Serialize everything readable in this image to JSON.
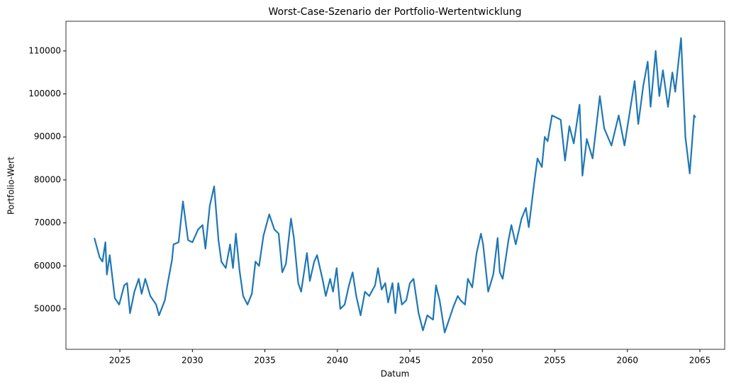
{
  "chart_data": {
    "type": "line",
    "title": "Worst-Case-Szenario der Portfolio-Wertentwicklung",
    "x_label": "Datum",
    "y_label": "Portfolio-Wert",
    "x": [
      2023.24,
      2023.6,
      2023.8,
      2024.0,
      2024.1,
      2024.3,
      2024.65,
      2024.95,
      2025.3,
      2025.5,
      2025.7,
      2026.0,
      2026.3,
      2026.5,
      2026.75,
      2027.1,
      2027.5,
      2027.7,
      2028.1,
      2028.3,
      2028.6,
      2028.7,
      2029.05,
      2029.35,
      2029.7,
      2030.0,
      2030.4,
      2030.7,
      2030.9,
      2031.2,
      2031.5,
      2031.8,
      2032.0,
      2032.3,
      2032.6,
      2032.8,
      2033.0,
      2033.25,
      2033.5,
      2033.8,
      2034.1,
      2034.35,
      2034.6,
      2034.9,
      2035.3,
      2035.65,
      2035.95,
      2036.2,
      2036.45,
      2036.8,
      2037.0,
      2037.3,
      2037.5,
      2037.9,
      2038.1,
      2038.4,
      2038.6,
      2039.0,
      2039.2,
      2039.5,
      2039.7,
      2039.95,
      2040.2,
      2040.5,
      2040.8,
      2041.05,
      2041.3,
      2041.6,
      2041.9,
      2042.2,
      2042.6,
      2042.8,
      2043.05,
      2043.3,
      2043.5,
      2043.8,
      2044.0,
      2044.2,
      2044.45,
      2044.75,
      2045.0,
      2045.25,
      2045.6,
      2045.9,
      2046.2,
      2046.6,
      2046.8,
      2047.05,
      2047.4,
      2047.8,
      2048.0,
      2048.3,
      2048.5,
      2048.8,
      2049.0,
      2049.3,
      2049.6,
      2049.9,
      2050.05,
      2050.4,
      2050.75,
      2051.05,
      2051.2,
      2051.4,
      2051.8,
      2052.0,
      2052.3,
      2052.7,
      2053.0,
      2053.2,
      2053.6,
      2053.8,
      2054.1,
      2054.3,
      2054.5,
      2054.8,
      2055.4,
      2055.7,
      2056.0,
      2056.3,
      2056.7,
      2056.9,
      2057.2,
      2057.6,
      2058.1,
      2058.4,
      2058.9,
      2059.4,
      2059.8,
      2060.5,
      2060.75,
      2061.1,
      2061.4,
      2061.6,
      2061.95,
      2062.2,
      2062.45,
      2062.8,
      2063.1,
      2063.3,
      2063.7,
      2064.0,
      2064.3,
      2064.6,
      2064.7
    ],
    "series": [
      {
        "name": "Portfolio-Wert",
        "color": "#1f77b4",
        "values": [
          66500,
          62000,
          61000,
          65500,
          58000,
          62500,
          52500,
          51000,
          55500,
          56000,
          49000,
          54000,
          57000,
          53500,
          57000,
          53000,
          51000,
          48500,
          52000,
          56000,
          61500,
          65000,
          65500,
          75000,
          66000,
          65500,
          68500,
          69500,
          64000,
          74000,
          78500,
          66000,
          61000,
          59500,
          65000,
          59500,
          67500,
          59000,
          53000,
          51000,
          53500,
          61000,
          60000,
          67000,
          72000,
          68500,
          67500,
          58500,
          60500,
          71000,
          66500,
          56000,
          54000,
          63000,
          56500,
          61000,
          62500,
          56500,
          53000,
          57000,
          54000,
          59500,
          50000,
          51000,
          55500,
          58500,
          53000,
          48500,
          54000,
          53000,
          55500,
          59500,
          54500,
          56000,
          51500,
          56000,
          49000,
          56000,
          51000,
          52000,
          56000,
          57000,
          49000,
          45000,
          48500,
          47500,
          55500,
          52000,
          44500,
          48500,
          50500,
          53000,
          52000,
          51000,
          57000,
          55000,
          63000,
          67500,
          65000,
          54000,
          58000,
          66500,
          58500,
          57000,
          66000,
          69500,
          65000,
          71000,
          73500,
          69000,
          80000,
          85000,
          83000,
          90000,
          89000,
          95000,
          94000,
          84500,
          92500,
          88500,
          97500,
          81000,
          89500,
          85000,
          99500,
          92000,
          88000,
          95000,
          88000,
          103000,
          93000,
          102000,
          107500,
          97000,
          110000,
          99500,
          105500,
          97000,
          105000,
          100500,
          113000,
          90000,
          81500,
          95000,
          94500
        ]
      }
    ],
    "xlim": [
      2021.28,
      2066.71
    ],
    "ylim": [
      40600,
      116900
    ],
    "xticks": [
      2025,
      2030,
      2035,
      2040,
      2045,
      2050,
      2055,
      2060,
      2065
    ],
    "yticks": [
      50000,
      60000,
      70000,
      80000,
      90000,
      100000,
      110000
    ],
    "grid": false
  }
}
